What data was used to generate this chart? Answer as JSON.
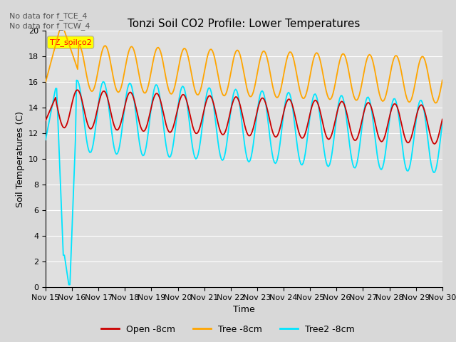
{
  "title": "Tonzi Soil CO2 Profile: Lower Temperatures",
  "xlabel": "Time",
  "ylabel": "Soil Temperatures (C)",
  "annotations": [
    "No data for f_TCE_4",
    "No data for f_TCW_4"
  ],
  "legend_label": "TZ_soilco2",
  "legend_entries": [
    "Open -8cm",
    "Tree -8cm",
    "Tree2 -8cm"
  ],
  "legend_colors": [
    "#cc0000",
    "#ffa500",
    "#00e5ff"
  ],
  "ylim": [
    0,
    20
  ],
  "yticks": [
    0,
    2,
    4,
    6,
    8,
    10,
    12,
    14,
    16,
    18,
    20
  ],
  "xtick_labels": [
    "Nov 15",
    "Nov 16",
    "Nov 17",
    "Nov 18",
    "Nov 19",
    "Nov 20",
    "Nov 21",
    "Nov 22",
    "Nov 23",
    "Nov 24",
    "Nov 25",
    "Nov 26",
    "Nov 27",
    "Nov 28",
    "Nov 29",
    "Nov 30"
  ],
  "bg_color": "#e0e0e0",
  "grid_color": "#ffffff",
  "open_color": "#cc0000",
  "tree_color": "#ffa500",
  "tree2_color": "#00e5ff",
  "fig_bg": "#d8d8d8"
}
